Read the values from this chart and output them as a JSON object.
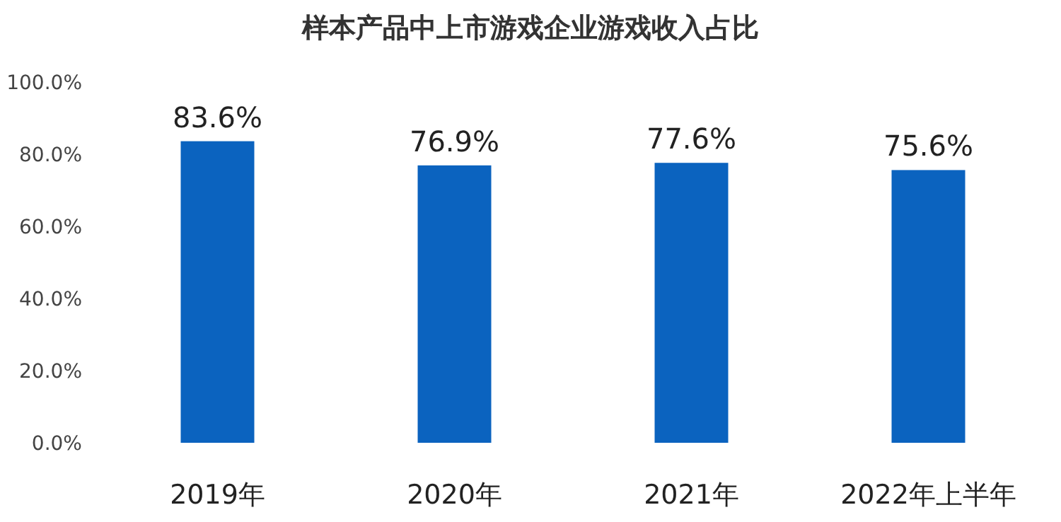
{
  "chart_data": {
    "type": "bar",
    "title": "样本产品中上市游戏企业游戏收入占比",
    "categories": [
      "2019年",
      "2020年",
      "2021年",
      "2022年上半年"
    ],
    "values": [
      83.6,
      76.9,
      77.6,
      75.6
    ],
    "value_labels": [
      "83.6%",
      "76.9%",
      "77.6%",
      "75.6%"
    ],
    "color": "#0b63bf",
    "ylim": [
      0,
      100
    ],
    "yticks": [
      {
        "value": 0,
        "label": "0.0%"
      },
      {
        "value": 20,
        "label": "20.0%"
      },
      {
        "value": 40,
        "label": "40.0%"
      },
      {
        "value": 60,
        "label": "60.0%"
      },
      {
        "value": 80,
        "label": "80.0%"
      },
      {
        "value": 100,
        "label": "100.0%"
      }
    ],
    "grid": false
  }
}
